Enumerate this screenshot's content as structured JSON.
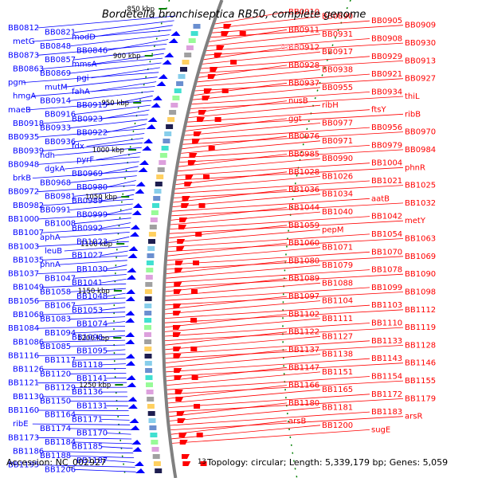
{
  "title": "Bordetella bronchiseptica RB50, complete genome",
  "accession": "Accession: NC_002927",
  "topology": "Topology: circular; Length: 5,339,179 bp; Genes: 5,059",
  "stray_label": "13",
  "colors": {
    "forward": "#0000ff",
    "reverse": "#ff0000",
    "backbone": "#808080",
    "pink": "#ffb6c1",
    "tick": "#008000"
  },
  "kbp_ticks": [
    "850 kbp",
    "900 kbp",
    "950 kbp",
    "1000 kbp",
    "1050 kbp",
    "1100 kbp",
    "1150 kbp",
    "1200 kbp",
    "1250 kbp"
  ],
  "left_labels": [
    "BB0812",
    "BB0821",
    "modD",
    "metG",
    "BB0848",
    "BB0846",
    "BB0873",
    "BB0857",
    "mmsA",
    "BB0863",
    "BB0869",
    "pgi",
    "pgm",
    "mutM",
    "fahA",
    "hmgA",
    "BB0914",
    "BB0915",
    "maeB",
    "BB0916",
    "BB0923",
    "BB0918",
    "BB0933",
    "BB0922",
    "BB0935",
    "BB0936",
    "fdx",
    "BB0939",
    "ndh",
    "pyrF",
    "BB0948",
    "dgkA",
    "BB0969",
    "brkB",
    "BB0968",
    "BB0980",
    "BB0972",
    "BB0981",
    "BB0989",
    "BB0982",
    "BB0991",
    "BB0999",
    "BB1000",
    "BB1008",
    "BB0992",
    "BB1007",
    "aphA",
    "BB1023",
    "BB1003",
    "leuB",
    "BB1027",
    "BB1035",
    "phnA",
    "BB1030",
    "BB1037",
    "BB1047",
    "BB1041",
    "BB1049",
    "BB1058",
    "BB1048",
    "BB1056",
    "BB1067",
    "BB1053",
    "BB1068",
    "BB1083",
    "BB1074",
    "BB1084",
    "BB1094",
    "BB1096",
    "BB1086",
    "BB1085",
    "BB1095",
    "BB1116",
    "BB1117",
    "BB1118",
    "BB1126",
    "BB1120",
    "BB1141",
    "BB1121",
    "BB1129",
    "BB1136",
    "BB1130",
    "BB1150",
    "BB1131",
    "BB1160",
    "BB1164",
    "BB1171",
    "ribE",
    "BB1174",
    "BB1170",
    "BB1173",
    "BB1184",
    "BB1185",
    "BB1186",
    "BB1188",
    "BB1187",
    "BB1195",
    "BB1206"
  ],
  "right_labels": [
    "BB0910",
    "BB0890",
    "BB0905",
    "BB0909",
    "BB0911",
    "BB0931",
    "BB0908",
    "BB0930",
    "BB0912",
    "BB0917",
    "BB0929",
    "BB0913",
    "BB0928",
    "BB0938",
    "BB0921",
    "BB0927",
    "BB0937",
    "BB0955",
    "BB0934",
    "thiL",
    "nusB",
    "ribH",
    "ftsY",
    "ribB",
    "ggt",
    "BB0977",
    "BB0956",
    "BB0970",
    "BB0976",
    "BB0971",
    "BB0979",
    "BB0984",
    "BB0985",
    "BB0990",
    "BB1004",
    "phnR",
    "BB1028",
    "BB1026",
    "BB1021",
    "BB1025",
    "BB1036",
    "BB1034",
    "aatB",
    "BB1032",
    "BB1044",
    "BB1040",
    "BB1042",
    "metY",
    "BB1059",
    "pepM",
    "BB1054",
    "BB1063",
    "BB1060",
    "BB1071",
    "BB1070",
    "BB1069",
    "BB1080",
    "BB1079",
    "BB1078",
    "BB1090",
    "BB1089",
    "BB1088",
    "BB1099",
    "BB1098",
    "BB1097",
    "BB1104",
    "BB1103",
    "BB1112",
    "BB1102",
    "BB1111",
    "BB1110",
    "BB1119",
    "BB1122",
    "BB1127",
    "BB1133",
    "BB1128",
    "BB1137",
    "BB1138",
    "BB1143",
    "BB1146",
    "BB1147",
    "BB1151",
    "BB1154",
    "BB1155",
    "BB1166",
    "BB1165",
    "BB1172",
    "BB1179",
    "BB1180",
    "BB1181",
    "BB1183",
    "arsR",
    "arsB",
    "BB1200",
    "sugE"
  ],
  "pink_label": "BB09"
}
